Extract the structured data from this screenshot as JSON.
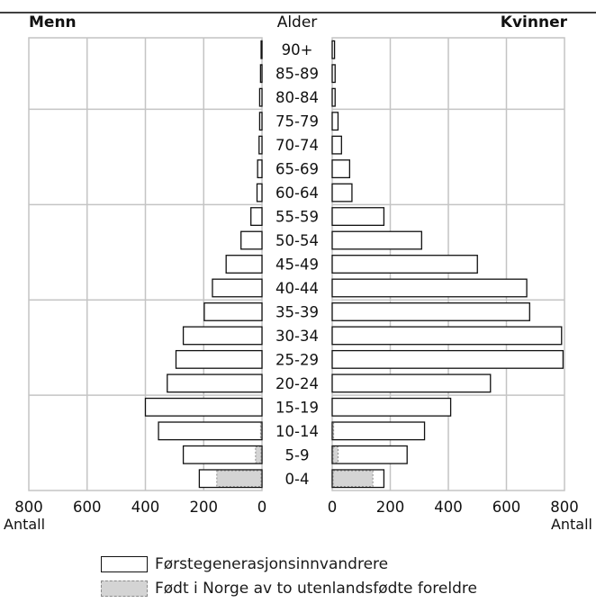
{
  "chart_data": {
    "type": "bar",
    "orientation": "horizontal",
    "layout": "population-pyramid",
    "title": "",
    "left_panel_label": "Menn",
    "right_panel_label": "Kvinner",
    "center_axis_label": "Alder",
    "x_axis_label_left": "Antall",
    "x_axis_label_right": "Antall",
    "x_ticks_left": [
      "800",
      "600",
      "400",
      "200",
      "0"
    ],
    "x_ticks_right": [
      "0",
      "200",
      "400",
      "600",
      "800"
    ],
    "xlim": [
      0,
      800
    ],
    "grid": true,
    "legend_placement": "bottom",
    "categories": [
      "90+",
      "85-89",
      "80-84",
      "75-79",
      "70-74",
      "65-69",
      "60-64",
      "55-59",
      "50-54",
      "45-49",
      "40-44",
      "35-39",
      "30-34",
      "25-29",
      "20-24",
      "15-19",
      "10-14",
      "5-9",
      "0-4"
    ],
    "series": [
      {
        "name": "Førstegenerasjonsinnvandrere",
        "color": "#ffffff",
        "men": [
          3,
          5,
          8,
          8,
          10,
          15,
          17,
          38,
          72,
          123,
          170,
          198,
          270,
          295,
          325,
          400,
          355,
          270,
          215
        ],
        "women": [
          8,
          10,
          10,
          20,
          32,
          60,
          68,
          178,
          308,
          500,
          670,
          680,
          790,
          795,
          545,
          408,
          318,
          258,
          178
        ]
      },
      {
        "name": "Født i Norge av to utenlandsfødte foreldre",
        "color": "#d4d4d4",
        "men": [
          0,
          0,
          0,
          0,
          0,
          0,
          0,
          0,
          0,
          0,
          0,
          0,
          0,
          0,
          0,
          0,
          5,
          22,
          155
        ],
        "women": [
          0,
          0,
          0,
          0,
          0,
          0,
          0,
          0,
          0,
          0,
          0,
          0,
          0,
          0,
          0,
          0,
          5,
          20,
          140
        ]
      }
    ]
  }
}
